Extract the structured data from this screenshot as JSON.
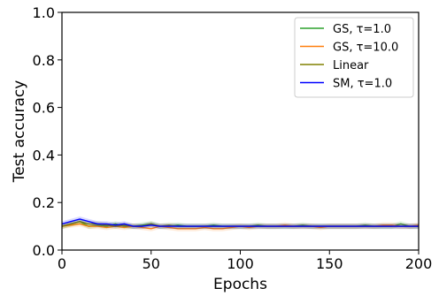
{
  "chart_data": {
    "type": "line",
    "xlabel": "Epochs",
    "ylabel": "Test accuracy",
    "xlim": [
      0,
      200
    ],
    "ylim": [
      0.0,
      1.0
    ],
    "xticks": [
      "0",
      "50",
      "100",
      "150",
      "200"
    ],
    "yticks": [
      "0.0",
      "0.2",
      "0.4",
      "0.6",
      "0.8",
      "1.0"
    ],
    "grid": false,
    "legend_position": "top-right",
    "x": [
      0,
      5,
      10,
      15,
      20,
      25,
      30,
      35,
      40,
      45,
      50,
      55,
      60,
      65,
      70,
      75,
      80,
      85,
      90,
      95,
      100,
      105,
      110,
      115,
      120,
      125,
      130,
      135,
      140,
      145,
      150,
      155,
      160,
      165,
      170,
      175,
      180,
      185,
      190,
      195,
      200
    ],
    "series": [
      {
        "name": "GS, τ=1.0",
        "color": "#2ca02c",
        "values": [
          0.1,
          0.11,
          0.12,
          0.1,
          0.105,
          0.1,
          0.11,
          0.1,
          0.1,
          0.105,
          0.11,
          0.1,
          0.1,
          0.105,
          0.1,
          0.1,
          0.1,
          0.105,
          0.1,
          0.1,
          0.1,
          0.1,
          0.105,
          0.1,
          0.1,
          0.1,
          0.1,
          0.105,
          0.1,
          0.1,
          0.1,
          0.1,
          0.1,
          0.1,
          0.105,
          0.1,
          0.1,
          0.1,
          0.11,
          0.1,
          0.1
        ]
      },
      {
        "name": "GS, τ=10.0",
        "color": "#ff7f0e",
        "values": [
          0.1,
          0.105,
          0.11,
          0.1,
          0.1,
          0.095,
          0.1,
          0.095,
          0.1,
          0.095,
          0.09,
          0.1,
          0.095,
          0.09,
          0.09,
          0.09,
          0.095,
          0.09,
          0.09,
          0.095,
          0.1,
          0.095,
          0.1,
          0.1,
          0.1,
          0.105,
          0.1,
          0.1,
          0.1,
          0.095,
          0.1,
          0.1,
          0.1,
          0.1,
          0.1,
          0.1,
          0.105,
          0.105,
          0.1,
          0.1,
          0.105
        ]
      },
      {
        "name": "Linear",
        "color": "#808000",
        "values": [
          0.1,
          0.11,
          0.12,
          0.11,
          0.11,
          0.105,
          0.1,
          0.105,
          0.1,
          0.1,
          0.11,
          0.1,
          0.105,
          0.1,
          0.1,
          0.1,
          0.1,
          0.1,
          0.1,
          0.1,
          0.1,
          0.1,
          0.1,
          0.1,
          0.1,
          0.1,
          0.1,
          0.1,
          0.1,
          0.1,
          0.1,
          0.1,
          0.1,
          0.1,
          0.1,
          0.1,
          0.1,
          0.1,
          0.1,
          0.1,
          0.1
        ]
      },
      {
        "name": "SM, τ=1.0",
        "color": "#0000ff",
        "values": [
          0.11,
          0.12,
          0.13,
          0.12,
          0.11,
          0.11,
          0.105,
          0.11,
          0.1,
          0.1,
          0.105,
          0.1,
          0.1,
          0.1,
          0.1,
          0.1,
          0.1,
          0.1,
          0.1,
          0.1,
          0.1,
          0.1,
          0.1,
          0.1,
          0.1,
          0.1,
          0.1,
          0.1,
          0.1,
          0.1,
          0.1,
          0.1,
          0.1,
          0.1,
          0.1,
          0.1,
          0.1,
          0.1,
          0.1,
          0.1,
          0.1
        ]
      }
    ]
  }
}
